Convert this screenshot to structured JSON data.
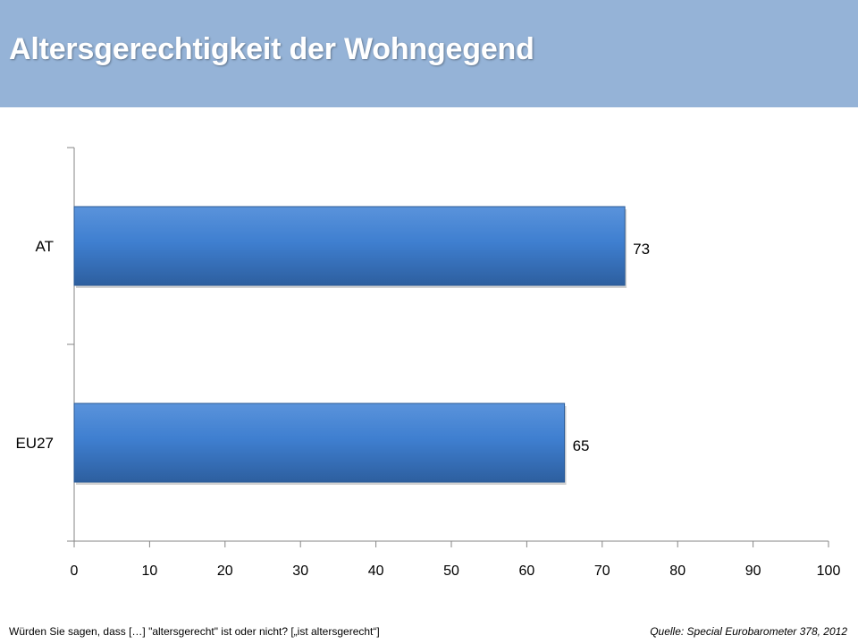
{
  "header": {
    "title": "Altersgerechtigkeit der Wohngegend",
    "background_color": "#95b3d7"
  },
  "chart_data": {
    "type": "bar",
    "orientation": "horizontal",
    "categories": [
      "AT",
      "EU27"
    ],
    "values": [
      73,
      65
    ],
    "data_labels": [
      "73",
      "65"
    ],
    "xlim": [
      0,
      100
    ],
    "xticks": [
      0,
      10,
      20,
      30,
      40,
      50,
      60,
      70,
      80,
      90,
      100
    ],
    "xtick_labels": [
      "0",
      "10",
      "20",
      "30",
      "40",
      "50",
      "60",
      "70",
      "80",
      "90",
      "100"
    ],
    "grid": false,
    "legend": "none",
    "bar_color": "#3f79c6"
  },
  "footer": {
    "question": "Würden Sie sagen, dass […] \"altersgerecht\" ist oder nicht? [„ist altersgerecht“]",
    "source": "Quelle: Special Eurobarometer 378, 2012"
  }
}
